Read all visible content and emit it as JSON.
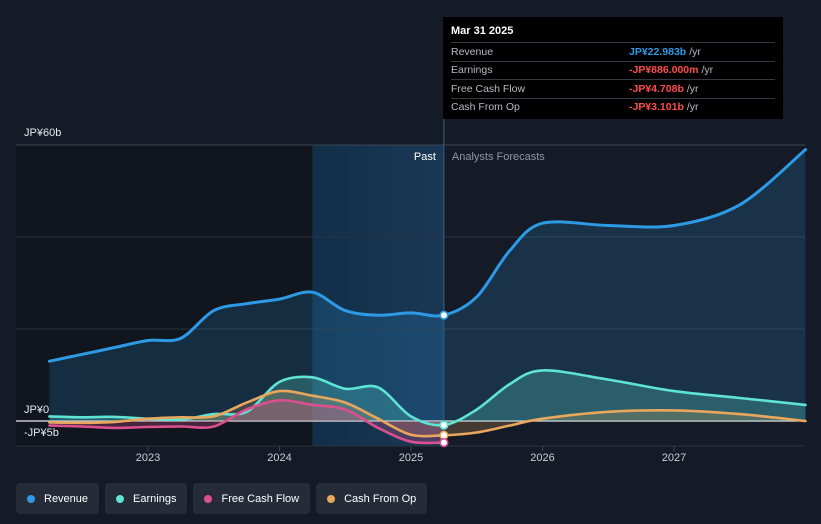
{
  "tooltip": {
    "date": "Mar 31 2025",
    "rows": [
      {
        "label": "Revenue",
        "value": "JP¥22.983b",
        "unit": "/yr",
        "color": "#2e9ae6"
      },
      {
        "label": "Earnings",
        "value": "-JP¥886.000m",
        "unit": "/yr",
        "color": "#ff4d4d"
      },
      {
        "label": "Free Cash Flow",
        "value": "-JP¥4.708b",
        "unit": "/yr",
        "color": "#ff4d4d"
      },
      {
        "label": "Cash From Op",
        "value": "-JP¥3.101b",
        "unit": "/yr",
        "color": "#ff4d4d"
      }
    ]
  },
  "chart_data": {
    "type": "line",
    "y_unit": "JP¥ billions",
    "ylim": [
      -5,
      60
    ],
    "y_tick_labels": [
      {
        "value": 60,
        "label": "JP¥60b"
      },
      {
        "value": 0,
        "label": "JP¥0"
      },
      {
        "value": -5,
        "label": "-JP¥5b"
      }
    ],
    "x_tick_labels": [
      {
        "value": 2023.0,
        "label": "2023"
      },
      {
        "value": 2024.0,
        "label": "2024"
      },
      {
        "value": 2025.0,
        "label": "2025"
      },
      {
        "value": 2026.0,
        "label": "2026"
      },
      {
        "value": 2027.0,
        "label": "2027"
      }
    ],
    "xlim": [
      2022.25,
      2028.0
    ],
    "past_label": "Past",
    "forecast_label": "Analysts Forecasts",
    "highlight_start": 2024.25,
    "divider_x": 2025.25,
    "grid": true,
    "series": [
      {
        "name": "Revenue",
        "color": "#2e9ae6",
        "filled": true,
        "points": [
          [
            2022.25,
            13.0
          ],
          [
            2022.5,
            14.5
          ],
          [
            2022.75,
            16.0
          ],
          [
            2023.0,
            17.5
          ],
          [
            2023.25,
            18.0
          ],
          [
            2023.5,
            24.0
          ],
          [
            2023.75,
            25.5
          ],
          [
            2024.0,
            26.5
          ],
          [
            2024.25,
            28.0
          ],
          [
            2024.5,
            24.0
          ],
          [
            2024.75,
            23.0
          ],
          [
            2025.0,
            23.5
          ],
          [
            2025.25,
            23.0
          ],
          [
            2025.5,
            27.0
          ],
          [
            2025.75,
            37.0
          ],
          [
            2026.0,
            43.0
          ],
          [
            2026.5,
            42.5
          ],
          [
            2027.0,
            42.5
          ],
          [
            2027.5,
            47.0
          ],
          [
            2028.0,
            59.0
          ]
        ]
      },
      {
        "name": "Earnings",
        "color": "#5ee3d4",
        "filled": true,
        "points": [
          [
            2022.25,
            1.0
          ],
          [
            2022.5,
            0.8
          ],
          [
            2022.75,
            0.9
          ],
          [
            2023.0,
            0.5
          ],
          [
            2023.25,
            0.3
          ],
          [
            2023.5,
            1.5
          ],
          [
            2023.75,
            2.0
          ],
          [
            2024.0,
            8.5
          ],
          [
            2024.25,
            9.5
          ],
          [
            2024.5,
            7.0
          ],
          [
            2024.75,
            7.3
          ],
          [
            2025.0,
            1.0
          ],
          [
            2025.25,
            -0.9
          ],
          [
            2025.5,
            2.5
          ],
          [
            2025.75,
            8.0
          ],
          [
            2026.0,
            11.0
          ],
          [
            2026.5,
            9.0
          ],
          [
            2027.0,
            6.5
          ],
          [
            2027.5,
            5.0
          ],
          [
            2028.0,
            3.5
          ]
        ]
      },
      {
        "name": "Free Cash Flow",
        "color": "#d94f90",
        "filled": true,
        "points": [
          [
            2022.25,
            -1.0
          ],
          [
            2022.5,
            -1.2
          ],
          [
            2022.75,
            -1.5
          ],
          [
            2023.0,
            -1.3
          ],
          [
            2023.25,
            -1.2
          ],
          [
            2023.5,
            -1.2
          ],
          [
            2023.75,
            2.5
          ],
          [
            2024.0,
            4.5
          ],
          [
            2024.25,
            3.5
          ],
          [
            2024.5,
            2.5
          ],
          [
            2024.75,
            -1.5
          ],
          [
            2025.0,
            -4.5
          ],
          [
            2025.25,
            -4.7
          ]
        ]
      },
      {
        "name": "Cash From Op",
        "color": "#e8a75c",
        "filled": true,
        "points": [
          [
            2022.25,
            -0.3
          ],
          [
            2022.5,
            -0.4
          ],
          [
            2022.75,
            -0.2
          ],
          [
            2023.0,
            0.5
          ],
          [
            2023.25,
            0.8
          ],
          [
            2023.5,
            1.0
          ],
          [
            2023.75,
            4.0
          ],
          [
            2024.0,
            6.5
          ],
          [
            2024.25,
            5.5
          ],
          [
            2024.5,
            4.0
          ],
          [
            2024.75,
            0.5
          ],
          [
            2025.0,
            -3.0
          ],
          [
            2025.25,
            -3.1
          ],
          [
            2025.5,
            -2.5
          ],
          [
            2025.75,
            -1.0
          ],
          [
            2026.0,
            0.5
          ],
          [
            2026.5,
            2.0
          ],
          [
            2027.0,
            2.3
          ],
          [
            2027.5,
            1.5
          ],
          [
            2028.0,
            0.0
          ]
        ]
      }
    ]
  },
  "legend": [
    {
      "label": "Revenue",
      "color": "#2e9ae6"
    },
    {
      "label": "Earnings",
      "color": "#5ee3d4"
    },
    {
      "label": "Free Cash Flow",
      "color": "#d94f90"
    },
    {
      "label": "Cash From Op",
      "color": "#e8a75c"
    }
  ]
}
